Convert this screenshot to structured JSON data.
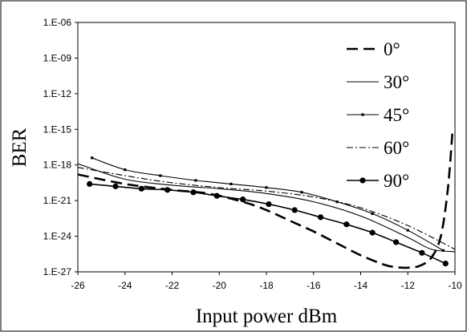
{
  "chart_data": {
    "type": "line",
    "xlabel": "Input power dBm",
    "ylabel": "BER",
    "xlim": [
      -26,
      -10
    ],
    "ylim_exponent": [
      -27,
      -6
    ],
    "y_scale": "log",
    "x_ticks": [
      -26,
      -24,
      -22,
      -20,
      -18,
      -16,
      -14,
      -12,
      -10
    ],
    "x_tick_labels": [
      "-26",
      "-24",
      "-22",
      "-20",
      "-18",
      "-16",
      "-14",
      "-12",
      "-10"
    ],
    "y_ticks_exponent": [
      -6,
      -9,
      -12,
      -15,
      -18,
      -21,
      -24,
      -27
    ],
    "y_tick_labels": [
      "1.E-06",
      "1.E-09",
      "1.E-12",
      "1.E-15",
      "1.E-18",
      "1.E-21",
      "1.E-24",
      "1.E-27"
    ],
    "grid": false,
    "legend_position": "top-right",
    "series": [
      {
        "name": "0°",
        "style": "dashed",
        "x": [
          -26,
          -24,
          -22,
          -20.5,
          -19,
          -18,
          -17,
          -16,
          -15,
          -14,
          -13,
          -12.5,
          -12,
          -11.5,
          -11,
          -10.6,
          -10.3,
          -10.1
        ],
        "y_exponent": [
          -18.8,
          -19.6,
          -20.1,
          -20.4,
          -21.1,
          -21.8,
          -22.7,
          -23.6,
          -24.6,
          -25.6,
          -26.4,
          -26.6,
          -26.65,
          -26.5,
          -25.8,
          -24,
          -20,
          -15
        ]
      },
      {
        "name": "30°",
        "style": "solid",
        "x": [
          -26,
          -24,
          -22,
          -20,
          -18,
          -16,
          -14,
          -12,
          -11,
          -10
        ],
        "y_exponent": [
          -17.9,
          -19.2,
          -19.7,
          -20,
          -20.4,
          -21.1,
          -22.3,
          -24.1,
          -25.1,
          -25.3
        ]
      },
      {
        "name": "45°",
        "style": "solid-small-markers",
        "x": [
          -25.4,
          -24,
          -22.5,
          -21,
          -19.5,
          -18,
          -16.5,
          -15,
          -13.5,
          -12,
          -10.5
        ],
        "y_exponent": [
          -17.4,
          -18.4,
          -18.9,
          -19.3,
          -19.6,
          -19.9,
          -20.3,
          -21.1,
          -22.1,
          -23.5,
          -25.2
        ]
      },
      {
        "name": "60°",
        "style": "dash-dot",
        "x": [
          -26,
          -24,
          -22,
          -20,
          -18,
          -16,
          -14,
          -12,
          -10
        ],
        "y_exponent": [
          -18.2,
          -18.9,
          -19.5,
          -19.9,
          -20.2,
          -20.7,
          -21.6,
          -23.1,
          -25.1
        ]
      },
      {
        "name": "90°",
        "style": "solid-dot-markers",
        "x": [
          -25.5,
          -24.4,
          -23.3,
          -22.2,
          -21.1,
          -20.1,
          -19,
          -17.9,
          -16.8,
          -15.7,
          -14.6,
          -13.5,
          -12.5,
          -11.4,
          -10.4
        ],
        "y_exponent": [
          -19.6,
          -19.8,
          -20,
          -20.1,
          -20.3,
          -20.6,
          -20.9,
          -21.3,
          -21.8,
          -22.4,
          -23,
          -23.7,
          -24.5,
          -25.4,
          -26.3
        ]
      }
    ]
  }
}
